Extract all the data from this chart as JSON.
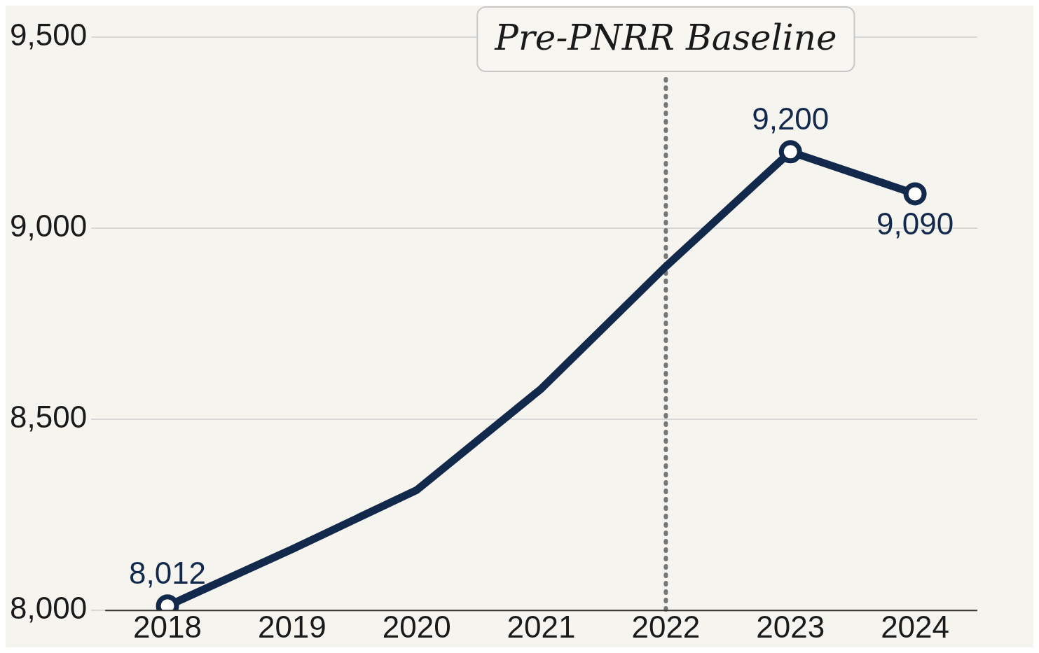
{
  "chart_data": {
    "type": "line",
    "categories": [
      "2018",
      "2019",
      "2020",
      "2021",
      "2022",
      "2023",
      "2024"
    ],
    "series": [
      {
        "color": "#13294b",
        "values": [
          8012,
          8160,
          8315,
          8580,
          8900,
          9200,
          9090
        ],
        "value_labels": [
          "8,012",
          null,
          null,
          null,
          null,
          "9,200",
          "9,090"
        ]
      }
    ],
    "ylim": [
      8000,
      9500
    ],
    "yticks": [
      {
        "value": 8000,
        "label": "8,000"
      },
      {
        "value": 8500,
        "label": "8,500"
      },
      {
        "value": 9000,
        "label": "9,000"
      },
      {
        "value": 9500,
        "label": "9,500"
      }
    ],
    "grid": "y",
    "legend": false,
    "line_style": "solid",
    "ref_lines": [
      {
        "axis": "x",
        "value": "2022",
        "label": "Pre-PNRR Baseline",
        "color": "#777777",
        "line_style": "dotted"
      }
    ]
  }
}
